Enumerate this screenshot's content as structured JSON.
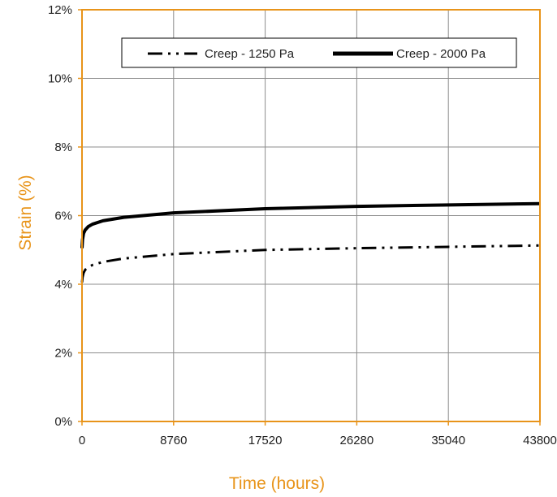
{
  "chart_data": {
    "type": "line",
    "xlabel": "Time (hours)",
    "ylabel": "Strain (%)",
    "xlim": [
      0,
      43800
    ],
    "ylim": [
      0,
      12
    ],
    "x_ticks": [
      "0",
      "8760",
      "17520",
      "26280",
      "35040",
      "43800"
    ],
    "x_tick_values": [
      0,
      8760,
      17520,
      26280,
      35040,
      43800
    ],
    "y_ticks": [
      "0%",
      "2%",
      "4%",
      "6%",
      "8%",
      "10%",
      "12%"
    ],
    "y_tick_values": [
      0,
      2,
      4,
      6,
      8,
      10,
      12
    ],
    "grid": true,
    "legend_position": "top",
    "colors": {
      "axis": "#E8941A",
      "grid": "#8c8c8c",
      "series": "#000000",
      "title": "#E8941A"
    },
    "series": [
      {
        "name": "Creep - 1250 Pa",
        "style": "dash-dot-dot",
        "x": [
          0,
          50,
          150,
          300,
          600,
          1000,
          2000,
          4000,
          8760,
          17520,
          26280,
          35040,
          43800
        ],
        "y": [
          4.05,
          4.2,
          4.33,
          4.42,
          4.5,
          4.56,
          4.65,
          4.75,
          4.88,
          5.0,
          5.05,
          5.09,
          5.13
        ]
      },
      {
        "name": "Creep - 2000 Pa",
        "style": "solid",
        "x": [
          0,
          50,
          150,
          300,
          600,
          1000,
          2000,
          4000,
          8760,
          17520,
          26280,
          35040,
          43800
        ],
        "y": [
          5.05,
          5.3,
          5.48,
          5.58,
          5.68,
          5.75,
          5.85,
          5.95,
          6.08,
          6.2,
          6.27,
          6.31,
          6.35
        ]
      }
    ]
  }
}
